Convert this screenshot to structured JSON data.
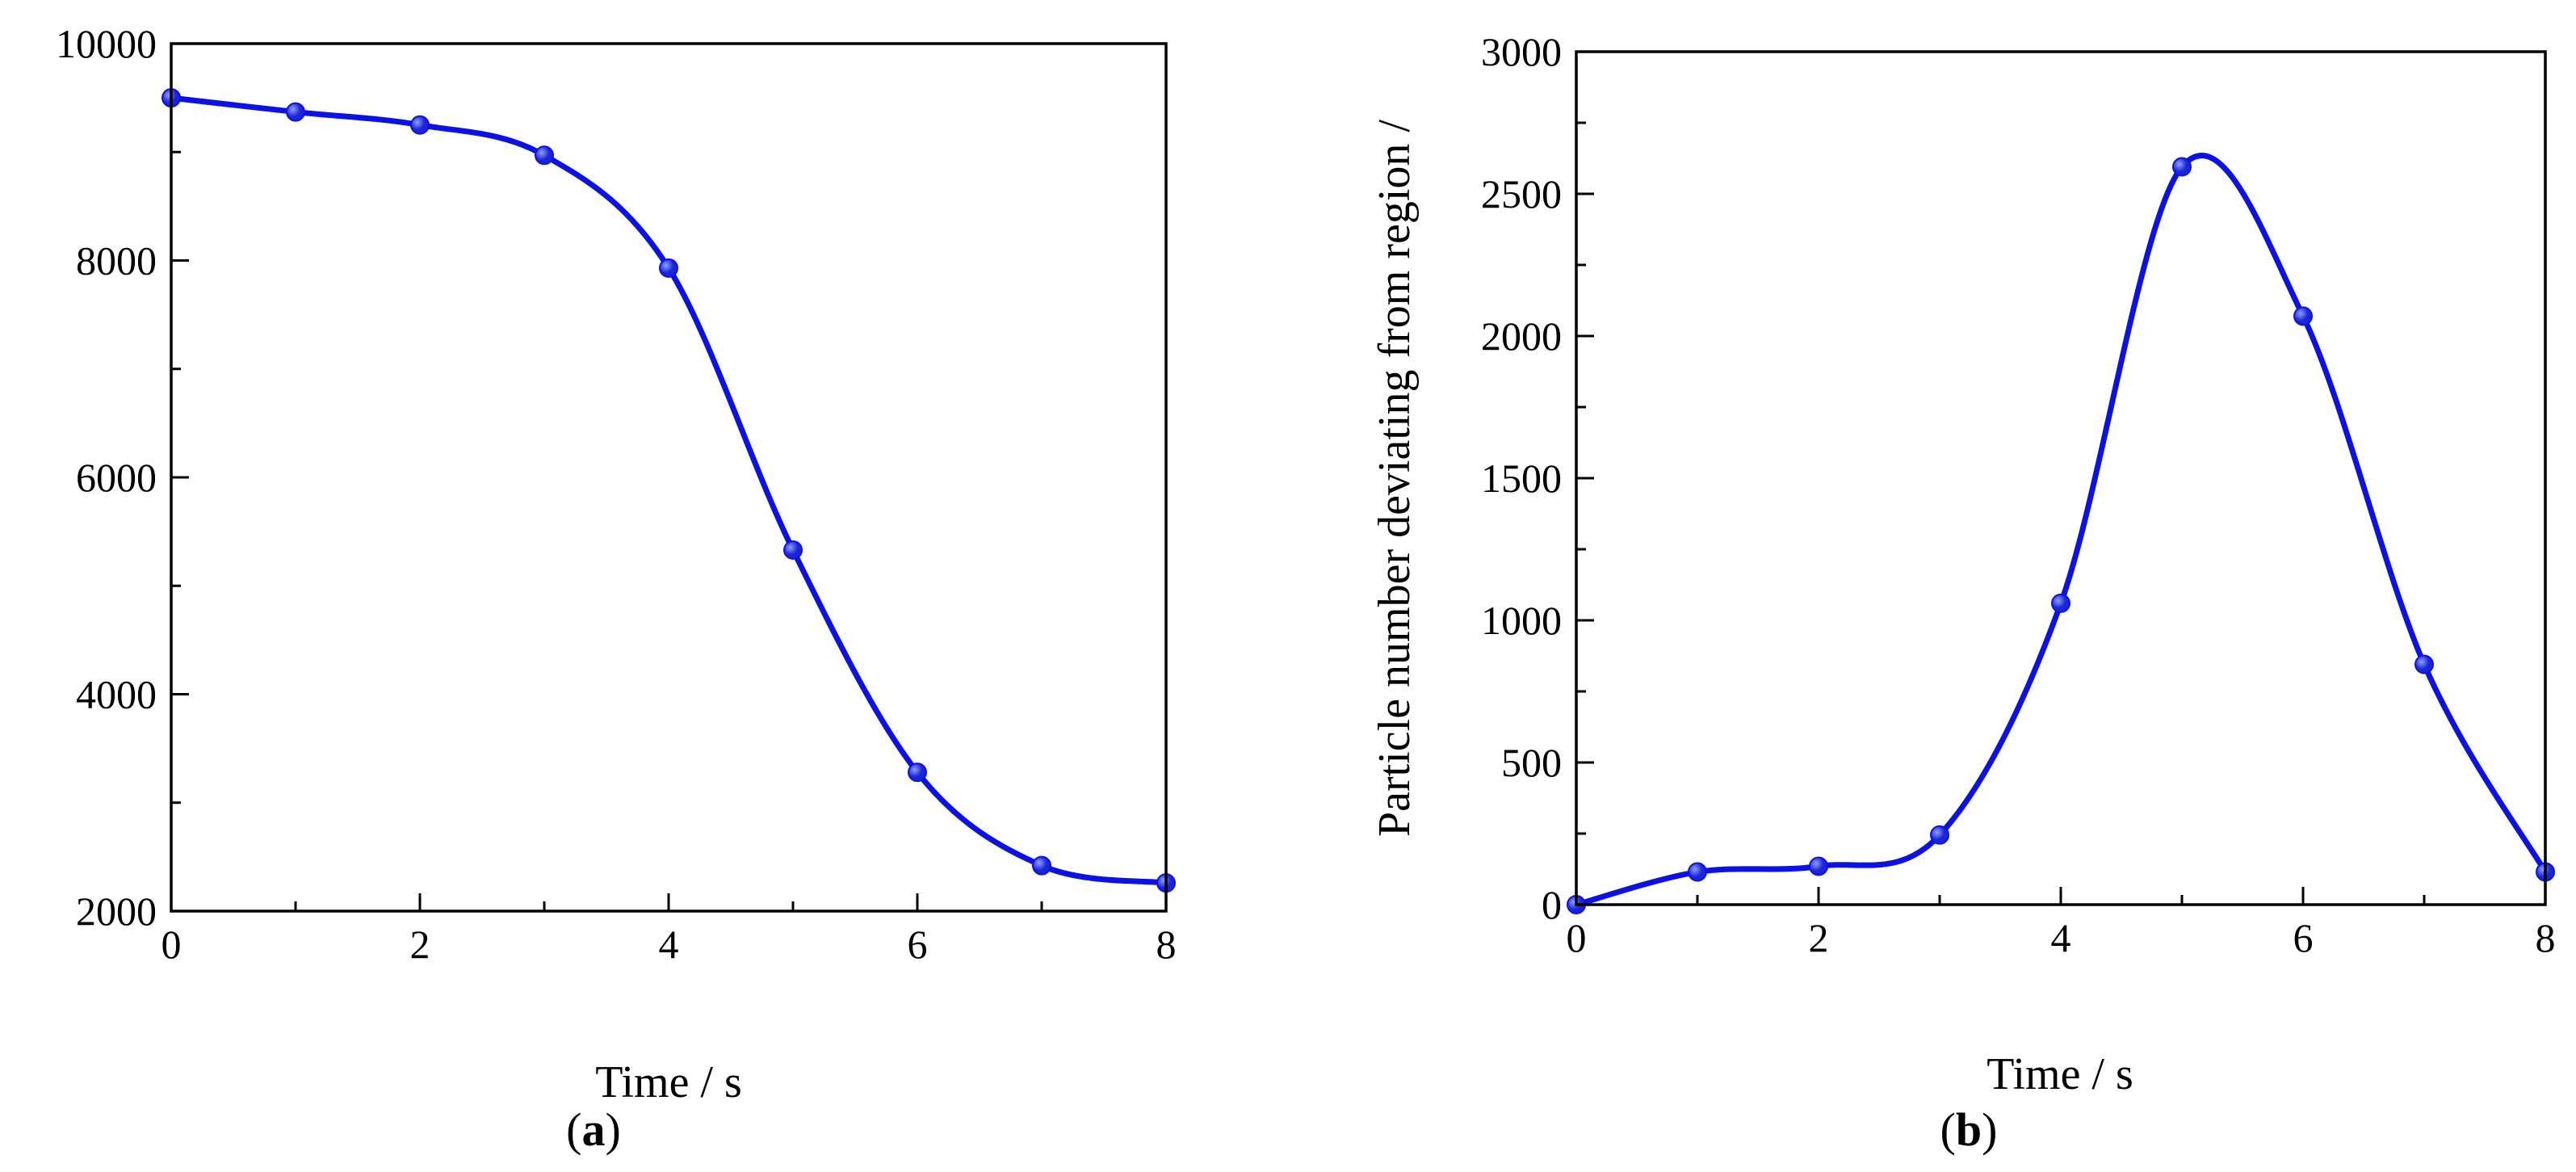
{
  "colors": {
    "series": "#0c12e6",
    "marker_fill": "#1a24d8",
    "marker_highlight": "#8fa0ff",
    "axes": "#000000",
    "background": "#ffffff"
  },
  "panels": [
    {
      "label_open": "(",
      "label_letter": "a",
      "label_close": ")"
    },
    {
      "label_open": "(",
      "label_letter": "b",
      "label_close": ")"
    }
  ],
  "chart_data": [
    {
      "type": "line",
      "smooth": true,
      "markers": true,
      "title": "",
      "xlabel": "Time / s",
      "ylabel": "",
      "xlim": [
        0,
        8
      ],
      "ylim": [
        2000,
        10000
      ],
      "xticks": [
        0,
        2,
        4,
        6,
        8
      ],
      "xtick_labels": [
        "0",
        "2",
        "4",
        "6",
        "8"
      ],
      "yticks": [
        2000,
        4000,
        6000,
        8000,
        10000
      ],
      "ytick_labels": [
        "2000",
        "4000",
        "6000",
        "8000",
        "10000"
      ],
      "grid": false,
      "legend": "none",
      "series": [
        {
          "x": [
            0,
            1,
            2,
            3,
            4,
            5,
            6,
            7,
            8
          ],
          "values": [
            9500,
            9370,
            9250,
            8970,
            7930,
            5330,
            3280,
            2420,
            2260
          ]
        }
      ]
    },
    {
      "type": "line",
      "smooth": true,
      "markers": true,
      "title": "",
      "xlabel": "Time / s",
      "ylabel": "Particle number deviating from region /",
      "xlim": [
        0,
        8
      ],
      "ylim": [
        0,
        3000
      ],
      "xticks": [
        0,
        2,
        4,
        6,
        8
      ],
      "xtick_labels": [
        "0",
        "2",
        "4",
        "6",
        "8"
      ],
      "yticks": [
        0,
        500,
        1000,
        1500,
        2000,
        2500,
        3000
      ],
      "ytick_labels": [
        "0",
        "500",
        "1000",
        "1500",
        "2000",
        "2500",
        "3000"
      ],
      "grid": false,
      "legend": "none",
      "series": [
        {
          "x": [
            0,
            1,
            2,
            3,
            4,
            5,
            6,
            7,
            8
          ],
          "values": [
            0,
            115,
            135,
            245,
            1060,
            2595,
            2070,
            845,
            115
          ]
        }
      ]
    }
  ]
}
